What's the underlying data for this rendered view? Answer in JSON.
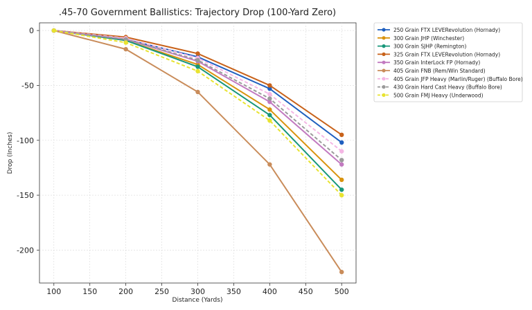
{
  "chart_data": {
    "type": "line",
    "title": ".45-70 Government Ballistics: Trajectory Drop (100-Yard Zero)",
    "xlabel": "Distance (Yards)",
    "ylabel": "Drop (Inches)",
    "x": [
      100,
      200,
      300,
      400,
      500
    ],
    "xlim": [
      80,
      520
    ],
    "ylim": [
      -230,
      7
    ],
    "xticks": [
      100,
      150,
      200,
      250,
      300,
      350,
      400,
      450,
      500
    ],
    "yticks": [
      0,
      -50,
      -100,
      -150,
      -200
    ],
    "grid": true,
    "legend_position": "outside-right",
    "series": [
      {
        "name": "250 Grain FTX LEVERevolution (Hornady)",
        "color": "#1f5fbf",
        "dashed": false,
        "values": [
          0,
          -8,
          -24,
          -53,
          -102
        ]
      },
      {
        "name": "300 Grain JHP (Winchester)",
        "color": "#d9930e",
        "dashed": false,
        "values": [
          0,
          -9,
          -31,
          -72,
          -136
        ]
      },
      {
        "name": "300 Grain SJHP (Remington)",
        "color": "#18977a",
        "dashed": false,
        "values": [
          0,
          -9,
          -33,
          -77,
          -145
        ]
      },
      {
        "name": "325 Grain FTX LEVERevolution (Hornady)",
        "color": "#c8621a",
        "dashed": false,
        "values": [
          0,
          -6,
          -21,
          -50,
          -95
        ]
      },
      {
        "name": "350 Grain InterLock FP (Hornady)",
        "color": "#c27ac0",
        "dashed": false,
        "values": [
          0,
          -8,
          -28,
          -65,
          -122
        ]
      },
      {
        "name": "405 Grain FNB (Rem/Win Standard)",
        "color": "#c98c5a",
        "dashed": false,
        "values": [
          0,
          -17,
          -56,
          -122,
          -220
        ]
      },
      {
        "name": "405 Grain JFP Heavy (Marlin/Ruger) (Buffalo Bore)",
        "color": "#f4b6e4",
        "dashed": true,
        "values": [
          0,
          -7,
          -25,
          -58,
          -110
        ]
      },
      {
        "name": "430 Grain Hard Cast Heavy (Buffalo Bore)",
        "color": "#9a9a9a",
        "dashed": true,
        "values": [
          0,
          -8,
          -27,
          -62,
          -118
        ]
      },
      {
        "name": "500 Grain FMJ Heavy (Underwood)",
        "color": "#e8e330",
        "dashed": true,
        "values": [
          0,
          -11,
          -37,
          -82,
          -150
        ]
      }
    ]
  }
}
